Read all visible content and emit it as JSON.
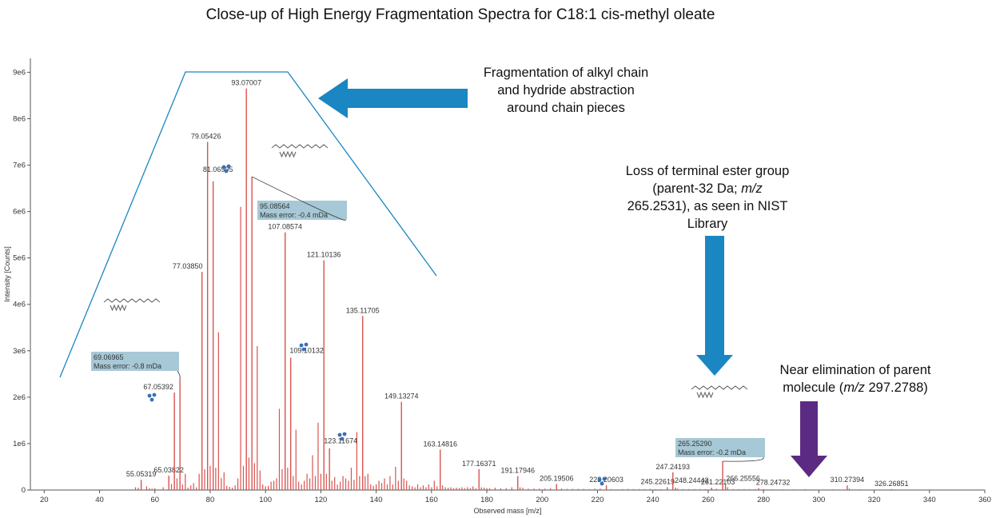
{
  "title": "Close-up of High Energy Fragmentation Spectra for C18:1 cis-methyl oleate",
  "annotations": {
    "alkyl_chain": "Fragmentation of alkyl chain and hydride abstraction around chain pieces",
    "alkyl_lines": [
      "Fragmentation of alkyl chain",
      "and hydride abstraction",
      "around chain pieces"
    ],
    "ester_lines": [
      "Loss of terminal ester group",
      "(parent-32 Da; m/z",
      "265.2531), as seen in NIST",
      "Library"
    ],
    "parent_line1": "Near elimination of parent",
    "parent_line2_pre": "molecule (",
    "parent_line2_mz": "m/z",
    "parent_line2_post": " 297.2788)"
  },
  "colors": {
    "peak": "#d9534f",
    "blue_arrow": "#1a86c2",
    "purple_arrow": "#5b2a82",
    "highlight_box": "#a7c8d6",
    "trapezoid": "#1a86c2",
    "structure_icon": "#3a6fb5"
  },
  "chart_data": {
    "type": "bar",
    "xlabel": "Observed mass [m/z]",
    "ylabel": "Intensity [Counts]",
    "xlim": [
      15,
      360
    ],
    "ylim": [
      0,
      9300000
    ],
    "x_ticks": [
      20,
      40,
      60,
      80,
      100,
      120,
      140,
      160,
      180,
      200,
      220,
      240,
      260,
      280,
      300,
      320,
      340,
      360
    ],
    "y_ticks": [
      {
        "value": 0,
        "label": "0"
      },
      {
        "value": 1000000,
        "label": "1e6"
      },
      {
        "value": 2000000,
        "label": "2e6"
      },
      {
        "value": 3000000,
        "label": "3e6"
      },
      {
        "value": 4000000,
        "label": "4e6"
      },
      {
        "value": 5000000,
        "label": "5e6"
      },
      {
        "value": 6000000,
        "label": "6e6"
      },
      {
        "value": 7000000,
        "label": "7e6"
      },
      {
        "value": 8000000,
        "label": "8e6"
      },
      {
        "value": 9000000,
        "label": "9e6"
      }
    ],
    "labeled_peaks": [
      {
        "mz": 55.05319,
        "intensity": 220000,
        "label": "55.05319"
      },
      {
        "mz": 65.03822,
        "intensity": 310000,
        "label": "65.03822"
      },
      {
        "mz": 67.05392,
        "intensity": 2100000,
        "label": "67.05392"
      },
      {
        "mz": 69.06965,
        "intensity": 2400000,
        "label": "69.06965",
        "mass_error": "Mass error: -0.8 mDa"
      },
      {
        "mz": 77.0385,
        "intensity": 4700000,
        "label": "77.03850"
      },
      {
        "mz": 79.05426,
        "intensity": 7500000,
        "label": "79.05426"
      },
      {
        "mz": 81.06995,
        "intensity": 6650000,
        "label": "81.06995"
      },
      {
        "mz": 93.07007,
        "intensity": 8650000,
        "label": "93.07007"
      },
      {
        "mz": 95.08564,
        "intensity": 6750000,
        "label": "95.08564",
        "mass_error": "Mass error: -0.4 mDa"
      },
      {
        "mz": 107.08574,
        "intensity": 5550000,
        "label": "107.08574"
      },
      {
        "mz": 109.10132,
        "intensity": 2850000,
        "label": "109.10132"
      },
      {
        "mz": 121.10136,
        "intensity": 4950000,
        "label": "121.10136"
      },
      {
        "mz": 123.11674,
        "intensity": 900000,
        "label": "123.11674"
      },
      {
        "mz": 135.11705,
        "intensity": 3750000,
        "label": "135.11705"
      },
      {
        "mz": 149.13274,
        "intensity": 1900000,
        "label": "149.13274"
      },
      {
        "mz": 163.14816,
        "intensity": 870000,
        "label": "163.14816"
      },
      {
        "mz": 177.16371,
        "intensity": 450000,
        "label": "177.16371"
      },
      {
        "mz": 191.17946,
        "intensity": 300000,
        "label": "191.17946"
      },
      {
        "mz": 205.19506,
        "intensity": 130000,
        "label": "205.19506"
      },
      {
        "mz": 223.20603,
        "intensity": 100000,
        "label": "223.20603"
      },
      {
        "mz": 245.22619,
        "intensity": 60000,
        "label": "245.22619"
      },
      {
        "mz": 247.24193,
        "intensity": 380000,
        "label": "247.24193"
      },
      {
        "mz": 248.24443,
        "intensity": 50000,
        "label": "248.24443"
      },
      {
        "mz": 261.22103,
        "intensity": 50000,
        "label": "261.22103"
      },
      {
        "mz": 265.2529,
        "intensity": 620000,
        "label": "265.25290",
        "mass_error": "Mass error: -0.2 mDa"
      },
      {
        "mz": 266.25556,
        "intensity": 130000,
        "label": "266.25556"
      },
      {
        "mz": 278.24732,
        "intensity": 40000,
        "label": "278.24732"
      },
      {
        "mz": 310.27394,
        "intensity": 100000,
        "label": "310.27394"
      },
      {
        "mz": 326.26851,
        "intensity": 20000,
        "label": "326.26851"
      }
    ],
    "minor_peaks": [
      [
        53,
        60000
      ],
      [
        54,
        50000
      ],
      [
        57,
        80000
      ],
      [
        58,
        40000
      ],
      [
        59,
        30000
      ],
      [
        60,
        40000
      ],
      [
        63,
        60000
      ],
      [
        66,
        130000
      ],
      [
        68,
        250000
      ],
      [
        70,
        120000
      ],
      [
        71,
        350000
      ],
      [
        72,
        50000
      ],
      [
        73,
        100000
      ],
      [
        74,
        150000
      ],
      [
        75,
        60000
      ],
      [
        76,
        350000
      ],
      [
        78,
        450000
      ],
      [
        80,
        520000
      ],
      [
        82,
        480000
      ],
      [
        83,
        3400000
      ],
      [
        84,
        260000
      ],
      [
        85,
        380000
      ],
      [
        86,
        90000
      ],
      [
        87,
        70000
      ],
      [
        88,
        50000
      ],
      [
        89,
        100000
      ],
      [
        90,
        250000
      ],
      [
        91,
        6100000
      ],
      [
        92,
        520000
      ],
      [
        94,
        700000
      ],
      [
        96,
        580000
      ],
      [
        97,
        3100000
      ],
      [
        98,
        420000
      ],
      [
        99,
        120000
      ],
      [
        100,
        80000
      ],
      [
        101,
        90000
      ],
      [
        102,
        180000
      ],
      [
        103,
        200000
      ],
      [
        104,
        250000
      ],
      [
        105,
        1750000
      ],
      [
        106,
        450000
      ],
      [
        108,
        480000
      ],
      [
        110,
        300000
      ],
      [
        111,
        1300000
      ],
      [
        112,
        180000
      ],
      [
        113,
        120000
      ],
      [
        114,
        200000
      ],
      [
        115,
        350000
      ],
      [
        116,
        250000
      ],
      [
        117,
        750000
      ],
      [
        118,
        300000
      ],
      [
        119,
        1450000
      ],
      [
        120,
        350000
      ],
      [
        122,
        350000
      ],
      [
        124,
        200000
      ],
      [
        125,
        280000
      ],
      [
        126,
        120000
      ],
      [
        127,
        180000
      ],
      [
        128,
        300000
      ],
      [
        129,
        250000
      ],
      [
        130,
        200000
      ],
      [
        131,
        480000
      ],
      [
        132,
        220000
      ],
      [
        133,
        1250000
      ],
      [
        134,
        300000
      ],
      [
        136,
        300000
      ],
      [
        137,
        350000
      ],
      [
        138,
        120000
      ],
      [
        139,
        90000
      ],
      [
        140,
        120000
      ],
      [
        141,
        200000
      ],
      [
        142,
        150000
      ],
      [
        143,
        250000
      ],
      [
        144,
        120000
      ],
      [
        145,
        300000
      ],
      [
        146,
        120000
      ],
      [
        147,
        500000
      ],
      [
        148,
        200000
      ],
      [
        150,
        250000
      ],
      [
        151,
        200000
      ],
      [
        152,
        100000
      ],
      [
        153,
        80000
      ],
      [
        154,
        60000
      ],
      [
        155,
        120000
      ],
      [
        156,
        60000
      ],
      [
        157,
        100000
      ],
      [
        158,
        60000
      ],
      [
        159,
        120000
      ],
      [
        160,
        60000
      ],
      [
        161,
        200000
      ],
      [
        162,
        80000
      ],
      [
        164,
        100000
      ],
      [
        165,
        60000
      ],
      [
        166,
        50000
      ],
      [
        167,
        60000
      ],
      [
        168,
        40000
      ],
      [
        169,
        50000
      ],
      [
        170,
        40000
      ],
      [
        171,
        60000
      ],
      [
        172,
        40000
      ],
      [
        173,
        60000
      ],
      [
        174,
        40000
      ],
      [
        175,
        80000
      ],
      [
        176,
        40000
      ],
      [
        178,
        60000
      ],
      [
        179,
        50000
      ],
      [
        180,
        40000
      ],
      [
        181,
        40000
      ],
      [
        183,
        50000
      ],
      [
        185,
        40000
      ],
      [
        187,
        40000
      ],
      [
        189,
        60000
      ],
      [
        192,
        60000
      ],
      [
        193,
        50000
      ],
      [
        195,
        30000
      ],
      [
        197,
        30000
      ],
      [
        199,
        30000
      ],
      [
        201,
        30000
      ],
      [
        203,
        40000
      ],
      [
        207,
        30000
      ],
      [
        209,
        25000
      ],
      [
        211,
        25000
      ],
      [
        213,
        25000
      ],
      [
        215,
        25000
      ],
      [
        217,
        20000
      ],
      [
        219,
        30000
      ],
      [
        221,
        30000
      ],
      [
        225,
        20000
      ],
      [
        229,
        20000
      ],
      [
        231,
        25000
      ],
      [
        233,
        20000
      ],
      [
        235,
        20000
      ],
      [
        237,
        20000
      ],
      [
        239,
        25000
      ],
      [
        241,
        20000
      ],
      [
        243,
        20000
      ],
      [
        249,
        30000
      ],
      [
        251,
        20000
      ],
      [
        253,
        20000
      ],
      [
        255,
        20000
      ],
      [
        257,
        20000
      ],
      [
        259,
        20000
      ],
      [
        263,
        30000
      ],
      [
        267,
        60000
      ],
      [
        269,
        20000
      ],
      [
        271,
        20000
      ],
      [
        273,
        20000
      ],
      [
        275,
        20000
      ],
      [
        277,
        20000
      ],
      [
        280,
        20000
      ],
      [
        283,
        15000
      ],
      [
        287,
        15000
      ],
      [
        291,
        15000
      ],
      [
        295,
        20000
      ],
      [
        297,
        15000
      ],
      [
        305,
        15000
      ],
      [
        311,
        30000
      ],
      [
        315,
        15000
      ]
    ]
  }
}
